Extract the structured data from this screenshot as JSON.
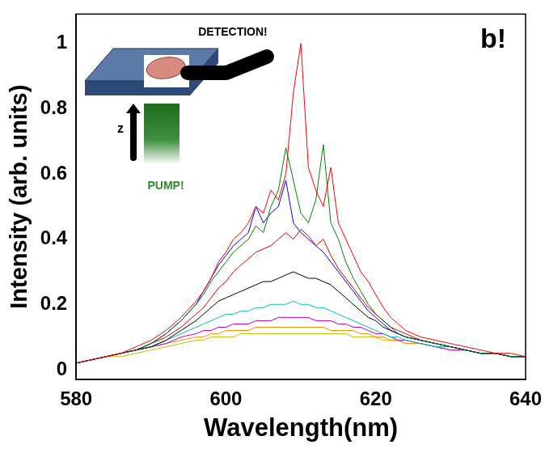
{
  "chart_data": {
    "type": "line",
    "x_label": "Wavelength(nm)",
    "y_label": "Intensity (arb. units)",
    "annotations": [
      "b!",
      "DETECTION!",
      "PUMP!",
      "z"
    ],
    "x": [
      580,
      582,
      584,
      586,
      588,
      590,
      592,
      594,
      596,
      597,
      598,
      599,
      600,
      601,
      602,
      603,
      604,
      605,
      606,
      607,
      608,
      609,
      610,
      611,
      612,
      613,
      614,
      615,
      616,
      617,
      618,
      619,
      620,
      621,
      622,
      623,
      624,
      626,
      628,
      630,
      632,
      634,
      636,
      638,
      640
    ],
    "series": [
      {
        "color": "#ff0000",
        "values": [
          0.02,
          0.03,
          0.04,
          0.05,
          0.07,
          0.09,
          0.12,
          0.16,
          0.21,
          0.24,
          0.28,
          0.33,
          0.36,
          0.4,
          0.42,
          0.45,
          0.5,
          0.48,
          0.55,
          0.52,
          0.6,
          0.85,
          1.0,
          0.62,
          0.55,
          0.5,
          0.62,
          0.45,
          0.4,
          0.35,
          0.3,
          0.27,
          0.23,
          0.19,
          0.16,
          0.14,
          0.12,
          0.1,
          0.09,
          0.08,
          0.07,
          0.06,
          0.05,
          0.05,
          0.04
        ]
      },
      {
        "color": "#008000",
        "values": [
          0.02,
          0.03,
          0.04,
          0.05,
          0.06,
          0.08,
          0.11,
          0.15,
          0.2,
          0.23,
          0.27,
          0.3,
          0.33,
          0.36,
          0.38,
          0.4,
          0.44,
          0.42,
          0.5,
          0.55,
          0.68,
          0.58,
          0.48,
          0.45,
          0.52,
          0.69,
          0.45,
          0.4,
          0.33,
          0.28,
          0.24,
          0.2,
          0.17,
          0.15,
          0.13,
          0.11,
          0.1,
          0.09,
          0.08,
          0.07,
          0.06,
          0.05,
          0.05,
          0.04,
          0.04
        ]
      },
      {
        "color": "#0000ff",
        "values": [
          0.02,
          0.03,
          0.04,
          0.05,
          0.06,
          0.08,
          0.11,
          0.15,
          0.2,
          0.24,
          0.28,
          0.32,
          0.35,
          0.38,
          0.4,
          0.42,
          0.5,
          0.45,
          0.48,
          0.5,
          0.58,
          0.45,
          0.42,
          0.4,
          0.38,
          0.36,
          0.33,
          0.3,
          0.27,
          0.24,
          0.21,
          0.18,
          0.16,
          0.14,
          0.12,
          0.11,
          0.1,
          0.09,
          0.08,
          0.07,
          0.06,
          0.05,
          0.05,
          0.04,
          0.04
        ]
      },
      {
        "color": "#e00000",
        "values": [
          0.02,
          0.03,
          0.04,
          0.05,
          0.06,
          0.08,
          0.1,
          0.13,
          0.17,
          0.19,
          0.22,
          0.25,
          0.27,
          0.3,
          0.32,
          0.34,
          0.36,
          0.37,
          0.38,
          0.4,
          0.42,
          0.4,
          0.43,
          0.41,
          0.38,
          0.4,
          0.35,
          0.31,
          0.28,
          0.25,
          0.22,
          0.19,
          0.17,
          0.15,
          0.13,
          0.12,
          0.11,
          0.09,
          0.08,
          0.07,
          0.06,
          0.05,
          0.05,
          0.04,
          0.04
        ]
      },
      {
        "color": "#000000",
        "values": [
          0.02,
          0.03,
          0.04,
          0.05,
          0.06,
          0.07,
          0.09,
          0.12,
          0.15,
          0.17,
          0.19,
          0.21,
          0.22,
          0.23,
          0.24,
          0.25,
          0.26,
          0.27,
          0.27,
          0.28,
          0.29,
          0.3,
          0.29,
          0.28,
          0.28,
          0.27,
          0.26,
          0.24,
          0.22,
          0.2,
          0.18,
          0.16,
          0.15,
          0.13,
          0.12,
          0.11,
          0.1,
          0.09,
          0.08,
          0.07,
          0.06,
          0.05,
          0.05,
          0.04,
          0.04
        ]
      },
      {
        "color": "#00bfbf",
        "values": [
          0.02,
          0.03,
          0.04,
          0.05,
          0.06,
          0.07,
          0.09,
          0.11,
          0.13,
          0.14,
          0.15,
          0.16,
          0.17,
          0.17,
          0.18,
          0.18,
          0.19,
          0.19,
          0.2,
          0.2,
          0.2,
          0.21,
          0.2,
          0.2,
          0.19,
          0.19,
          0.18,
          0.17,
          0.16,
          0.15,
          0.14,
          0.13,
          0.12,
          0.11,
          0.1,
          0.1,
          0.09,
          0.08,
          0.07,
          0.07,
          0.06,
          0.05,
          0.05,
          0.04,
          0.04
        ]
      },
      {
        "color": "#bf00bf",
        "values": [
          0.02,
          0.03,
          0.04,
          0.05,
          0.06,
          0.07,
          0.08,
          0.1,
          0.11,
          0.12,
          0.12,
          0.13,
          0.13,
          0.14,
          0.14,
          0.14,
          0.15,
          0.15,
          0.15,
          0.16,
          0.16,
          0.16,
          0.16,
          0.16,
          0.15,
          0.15,
          0.15,
          0.14,
          0.14,
          0.13,
          0.13,
          0.12,
          0.11,
          0.11,
          0.1,
          0.09,
          0.09,
          0.08,
          0.07,
          0.06,
          0.06,
          0.05,
          0.05,
          0.04,
          0.04
        ]
      },
      {
        "color": "#ff8c00",
        "values": [
          0.02,
          0.03,
          0.04,
          0.05,
          0.06,
          0.07,
          0.08,
          0.09,
          0.1,
          0.1,
          0.11,
          0.11,
          0.12,
          0.12,
          0.12,
          0.12,
          0.13,
          0.13,
          0.13,
          0.13,
          0.13,
          0.13,
          0.13,
          0.13,
          0.13,
          0.13,
          0.12,
          0.12,
          0.12,
          0.12,
          0.11,
          0.11,
          0.1,
          0.1,
          0.09,
          0.09,
          0.08,
          0.08,
          0.07,
          0.06,
          0.06,
          0.05,
          0.05,
          0.04,
          0.04
        ]
      },
      {
        "color": "#bfbf00",
        "values": [
          0.02,
          0.03,
          0.04,
          0.04,
          0.05,
          0.06,
          0.07,
          0.08,
          0.09,
          0.09,
          0.1,
          0.1,
          0.1,
          0.1,
          0.11,
          0.11,
          0.11,
          0.11,
          0.11,
          0.11,
          0.11,
          0.11,
          0.11,
          0.11,
          0.11,
          0.11,
          0.11,
          0.11,
          0.11,
          0.1,
          0.1,
          0.1,
          0.1,
          0.09,
          0.09,
          0.09,
          0.08,
          0.08,
          0.07,
          0.07,
          0.06,
          0.05,
          0.05,
          0.04,
          0.04
        ]
      }
    ],
    "xlim": [
      580,
      640
    ],
    "xticks": [
      580,
      600,
      620,
      640
    ],
    "ylim": [
      -0.03,
      1.09
    ],
    "yticks": [
      0,
      0.2,
      0.4,
      0.6,
      0.8,
      1
    ],
    "grid": false
  }
}
